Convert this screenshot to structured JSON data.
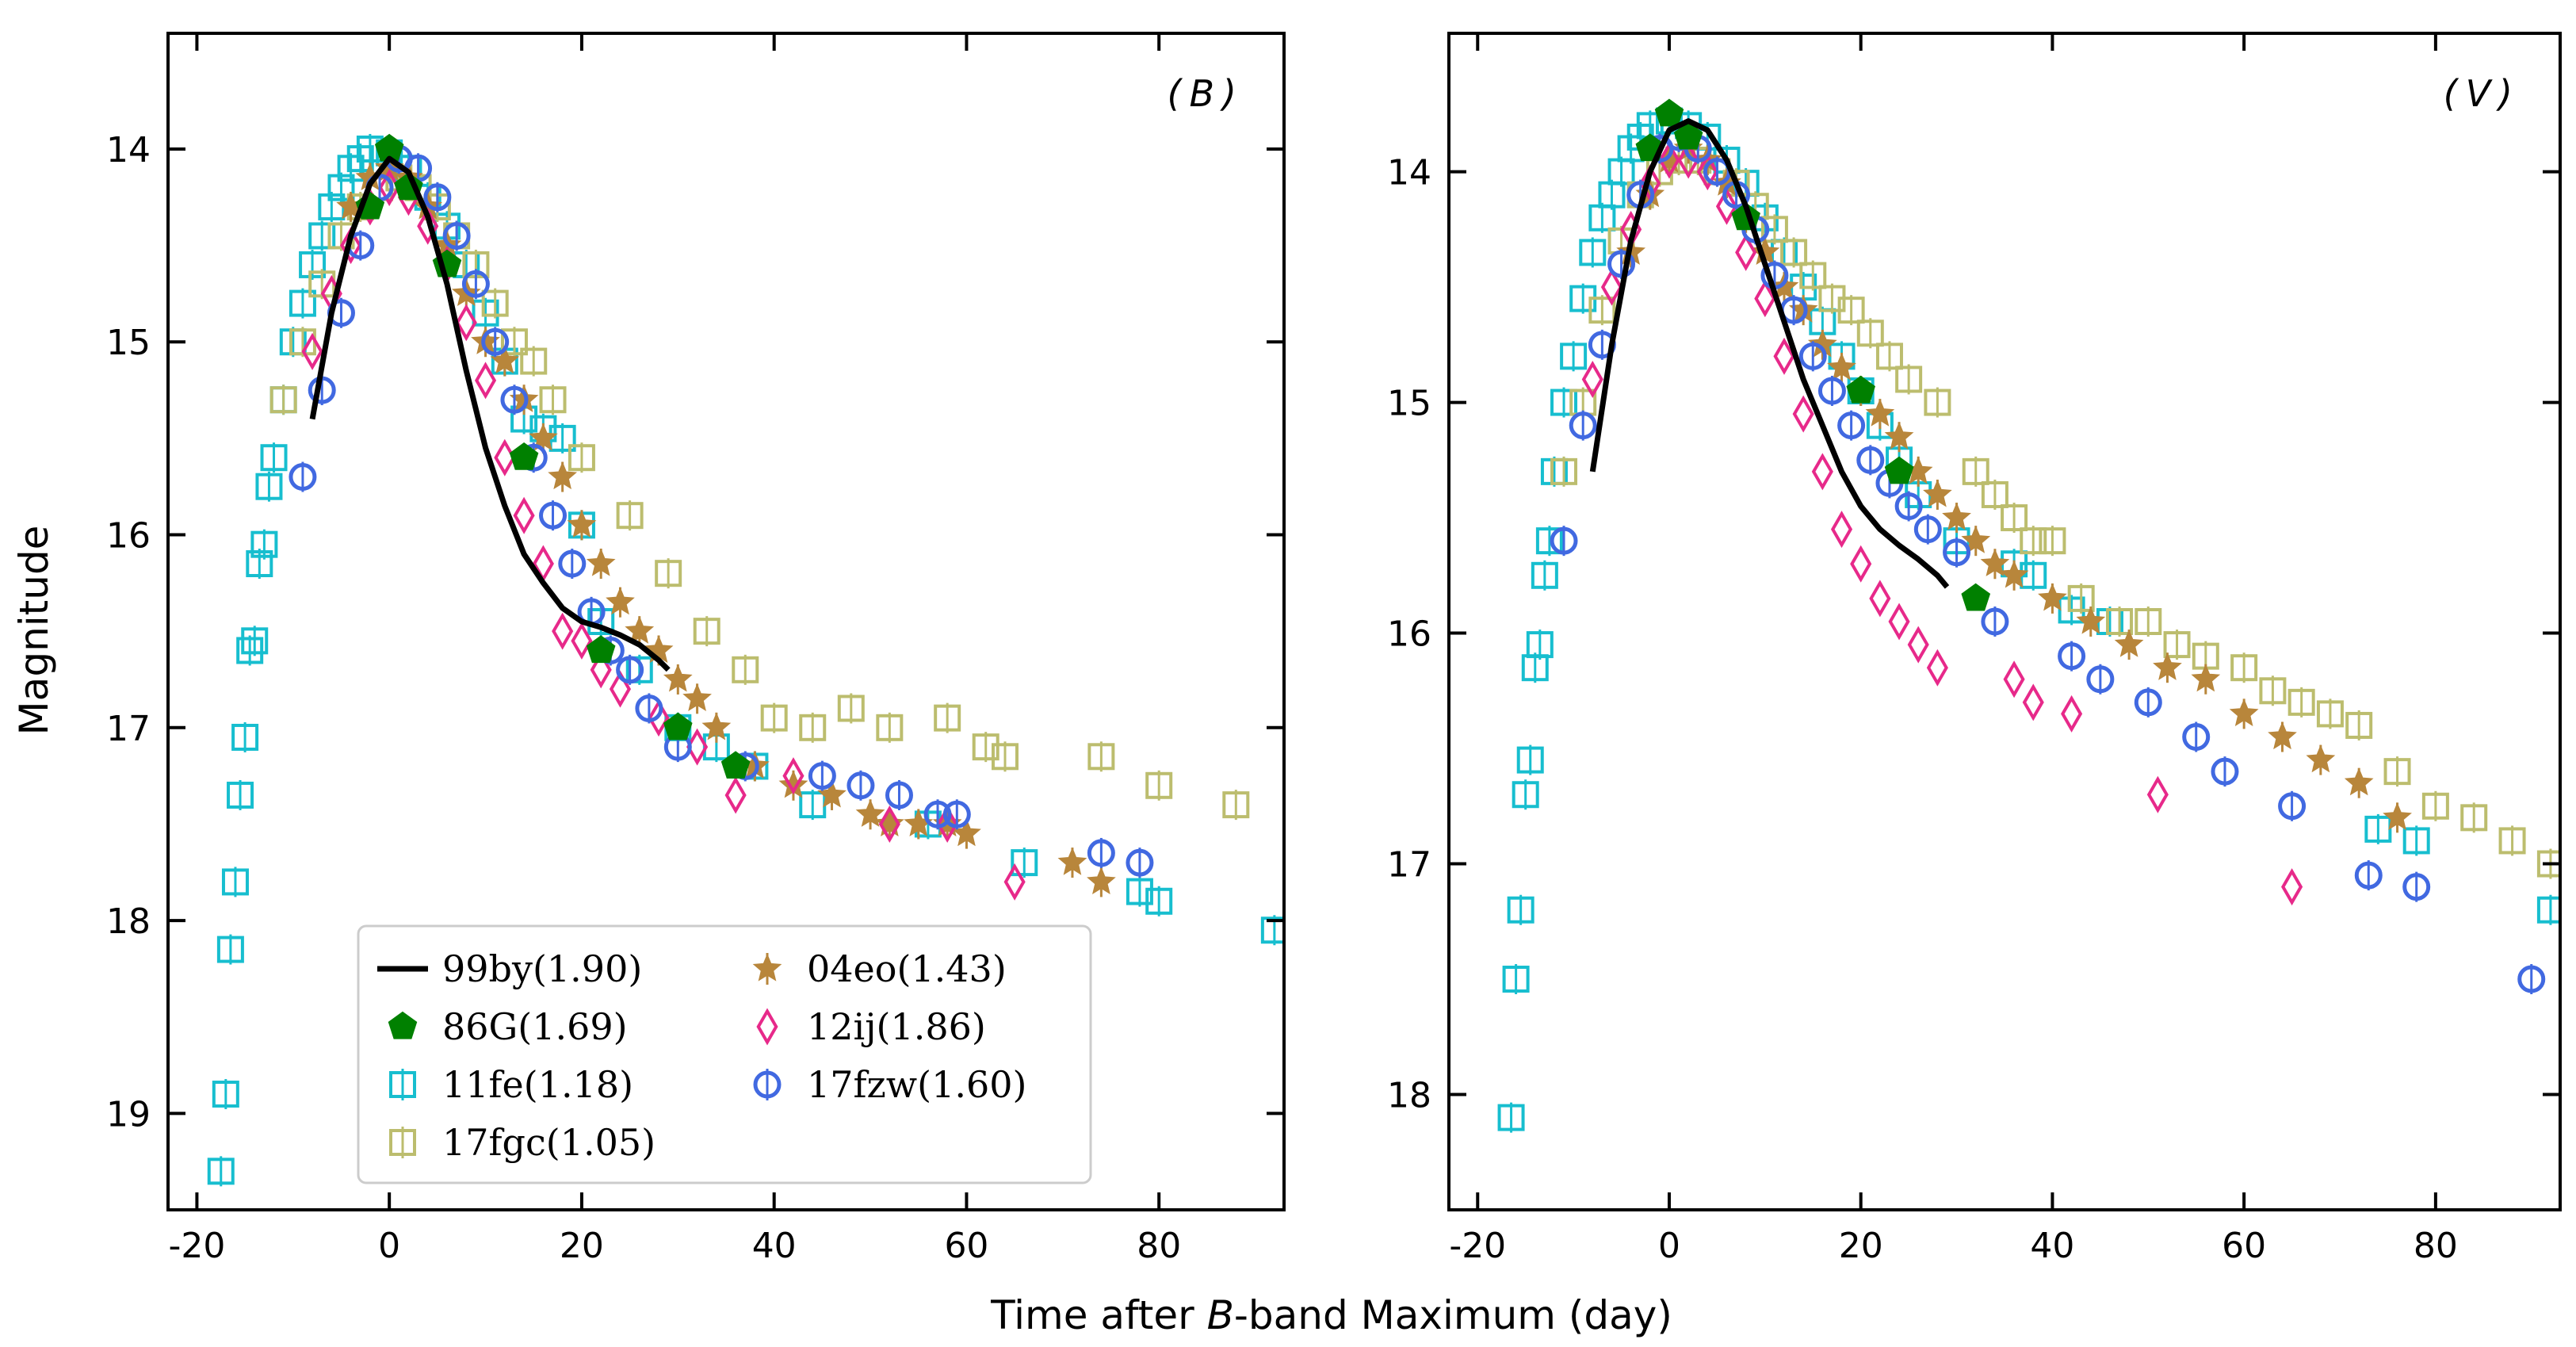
{
  "figure": {
    "xlabel_prefix": "Time after ",
    "xlabel_italic": "B",
    "xlabel_suffix": "-band Maximum (day)",
    "ylabel": "Magnitude"
  },
  "legend": [
    {
      "key": "sn99by",
      "label": "99by(1.90)"
    },
    {
      "key": "sn86G",
      "label": "86G(1.69)"
    },
    {
      "key": "sn11fe",
      "label": "11fe(1.18)"
    },
    {
      "key": "sn17fgc",
      "label": "17fgc(1.05)"
    },
    {
      "key": "sn04eo",
      "label": "04eo(1.43)"
    },
    {
      "key": "sn12ij",
      "label": "12ij(1.86)"
    },
    {
      "key": "sn17fzw",
      "label": "17fzw(1.60)"
    }
  ],
  "styles": {
    "sn99by": {
      "color": "#000000",
      "marker": "line"
    },
    "sn86G": {
      "color": "#008000",
      "marker": "pentagon"
    },
    "sn11fe": {
      "color": "#17becf",
      "marker": "square"
    },
    "sn17fgc": {
      "color": "#bcbd6e",
      "marker": "square"
    },
    "sn04eo": {
      "color": "#b8863b",
      "marker": "star"
    },
    "sn12ij": {
      "color": "#e7298a",
      "marker": "diamond"
    },
    "sn17fzw": {
      "color": "#4169e1",
      "marker": "circle"
    }
  },
  "chart_data": [
    {
      "type": "scatter",
      "title": "(B)",
      "title_open": "(",
      "title_band": "B",
      "title_close": ")",
      "xlabel": "Time after B-band Maximum (day)",
      "ylabel": "Magnitude",
      "xlim": [
        -23,
        93
      ],
      "ylim": [
        19.5,
        13.4
      ],
      "xticks": [
        -20,
        0,
        20,
        40,
        60,
        80
      ],
      "xtick_labels": [
        "-20",
        "0",
        "20",
        "40",
        "60",
        "80"
      ],
      "yticks": [
        14,
        15,
        16,
        17,
        18,
        19
      ],
      "ytick_labels": [
        "14",
        "15",
        "16",
        "17",
        "18",
        "19"
      ],
      "legend_position": "lower-left",
      "series": {
        "sn99by": {
          "x": [
            -8,
            -6,
            -4,
            -2,
            0,
            2,
            4,
            6,
            8,
            10,
            12,
            14,
            16,
            18,
            20,
            22,
            24,
            26,
            28,
            29
          ],
          "y": [
            15.4,
            14.85,
            14.45,
            14.18,
            14.05,
            14.12,
            14.35,
            14.7,
            15.15,
            15.55,
            15.85,
            16.1,
            16.25,
            16.38,
            16.45,
            16.48,
            16.52,
            16.57,
            16.65,
            16.7
          ]
        },
        "sn86G": {
          "x": [
            -2,
            0,
            2,
            6,
            14,
            22,
            30,
            36
          ],
          "y": [
            14.3,
            14.0,
            14.2,
            14.6,
            15.6,
            16.6,
            17.0,
            17.2
          ]
        },
        "sn11fe": {
          "x": [
            -17.5,
            -17,
            -16.5,
            -16,
            -15.5,
            -15,
            -14.5,
            -14,
            -13.5,
            -13,
            -12.5,
            -12,
            -11,
            -10,
            -9,
            -8,
            -7,
            -6,
            -5,
            -4,
            -3,
            -2,
            0,
            2,
            4,
            6,
            8,
            10,
            12,
            14,
            16,
            18,
            20,
            22,
            26,
            30,
            34,
            38,
            44,
            56,
            66,
            78,
            80,
            92
          ],
          "y": [
            19.3,
            18.9,
            18.15,
            17.8,
            17.35,
            17.05,
            16.6,
            16.55,
            16.15,
            16.05,
            15.75,
            15.6,
            15.3,
            15.0,
            14.8,
            14.6,
            14.45,
            14.3,
            14.2,
            14.1,
            14.05,
            14.0,
            14.02,
            14.1,
            14.25,
            14.4,
            14.6,
            14.85,
            15.1,
            15.4,
            15.45,
            15.5,
            15.95,
            16.45,
            16.7,
            17.0,
            17.1,
            17.2,
            17.4,
            17.5,
            17.7,
            17.85,
            17.9,
            18.05
          ]
        },
        "sn17fgc": {
          "x": [
            -11,
            -9,
            -7,
            -5,
            -3,
            -1,
            1,
            3,
            5,
            7,
            9,
            11,
            13,
            15,
            17,
            20,
            25,
            29,
            33,
            37,
            40,
            44,
            48,
            52,
            58,
            62,
            64,
            74,
            80,
            88
          ],
          "y": [
            15.3,
            15.0,
            14.7,
            14.45,
            14.3,
            14.2,
            14.15,
            14.2,
            14.3,
            14.45,
            14.6,
            14.8,
            15.0,
            15.1,
            15.3,
            15.6,
            15.9,
            16.2,
            16.5,
            16.7,
            16.95,
            17.0,
            16.9,
            17.0,
            16.95,
            17.1,
            17.15,
            17.15,
            17.3,
            17.4
          ]
        },
        "sn04eo": {
          "x": [
            -4,
            -2,
            0,
            2,
            4,
            6,
            8,
            10,
            12,
            14,
            16,
            18,
            20,
            22,
            24,
            26,
            28,
            30,
            32,
            34,
            38,
            42,
            46,
            50,
            52,
            55,
            58,
            60,
            71,
            74
          ],
          "y": [
            14.3,
            14.15,
            14.1,
            14.15,
            14.3,
            14.5,
            14.75,
            15.0,
            15.1,
            15.3,
            15.5,
            15.7,
            15.95,
            16.15,
            16.35,
            16.5,
            16.6,
            16.75,
            16.85,
            17.0,
            17.2,
            17.3,
            17.35,
            17.45,
            17.5,
            17.5,
            17.5,
            17.55,
            17.7,
            17.8
          ]
        },
        "sn12ij": {
          "x": [
            -8,
            -6,
            -4,
            -2,
            0,
            2,
            4,
            6,
            8,
            10,
            12,
            14,
            16,
            18,
            20,
            22,
            24,
            28,
            32,
            36,
            42,
            52,
            58,
            65
          ],
          "y": [
            15.05,
            14.75,
            14.5,
            14.3,
            14.2,
            14.25,
            14.4,
            14.6,
            14.9,
            15.2,
            15.6,
            15.9,
            16.15,
            16.5,
            16.55,
            16.7,
            16.8,
            16.95,
            17.1,
            17.35,
            17.25,
            17.5,
            17.5,
            17.8
          ]
        },
        "sn17fzw": {
          "x": [
            -9,
            -7,
            -5,
            -3,
            -1,
            1,
            3,
            5,
            7,
            9,
            11,
            13,
            15,
            17,
            19,
            21,
            23,
            25,
            27,
            30,
            37,
            45,
            49,
            53,
            57,
            59,
            74,
            78
          ],
          "y": [
            15.7,
            15.25,
            14.85,
            14.5,
            14.2,
            14.05,
            14.1,
            14.25,
            14.45,
            14.7,
            15.0,
            15.3,
            15.6,
            15.9,
            16.15,
            16.4,
            16.6,
            16.7,
            16.9,
            17.1,
            17.2,
            17.25,
            17.3,
            17.35,
            17.45,
            17.45,
            17.65,
            17.7
          ]
        }
      }
    },
    {
      "type": "scatter",
      "title": "(V)",
      "title_open": "(",
      "title_band": "V",
      "title_close": ")",
      "xlabel": "Time after B-band Maximum (day)",
      "ylabel": "Magnitude",
      "xlim": [
        -23,
        93
      ],
      "ylim": [
        18.5,
        13.4
      ],
      "xticks": [
        -20,
        0,
        20,
        40,
        60,
        80
      ],
      "xtick_labels": [
        "-20",
        "0",
        "20",
        "40",
        "60",
        "80"
      ],
      "yticks": [
        14,
        15,
        16,
        17,
        18
      ],
      "ytick_labels": [
        "14",
        "15",
        "16",
        "17",
        "18"
      ],
      "legend_position": "none",
      "series": {
        "sn99by": {
          "x": [
            -8,
            -6,
            -4,
            -2,
            0,
            2,
            4,
            6,
            8,
            10,
            12,
            14,
            16,
            18,
            20,
            22,
            24,
            26,
            28,
            29
          ],
          "y": [
            15.3,
            14.75,
            14.3,
            14.0,
            13.82,
            13.78,
            13.82,
            13.95,
            14.15,
            14.4,
            14.65,
            14.9,
            15.1,
            15.3,
            15.45,
            15.55,
            15.62,
            15.68,
            15.75,
            15.8
          ]
        },
        "sn86G": {
          "x": [
            -2,
            0,
            2,
            8,
            20,
            24,
            32
          ],
          "y": [
            13.9,
            13.75,
            13.85,
            14.2,
            14.95,
            15.3,
            15.85
          ]
        },
        "sn11fe": {
          "x": [
            -16.5,
            -16,
            -15.5,
            -15,
            -14.5,
            -14,
            -13.5,
            -13,
            -12.5,
            -12,
            -11,
            -10,
            -9,
            -8,
            -7,
            -6,
            -5,
            -4,
            -3,
            -2,
            0,
            2,
            4,
            6,
            8,
            10,
            12,
            14,
            16,
            18,
            20,
            22,
            24,
            26,
            30,
            36,
            38,
            42,
            46,
            74,
            78,
            92
          ],
          "y": [
            18.1,
            17.5,
            17.2,
            16.7,
            16.55,
            16.15,
            16.05,
            15.75,
            15.6,
            15.3,
            15.0,
            14.8,
            14.55,
            14.35,
            14.2,
            14.1,
            14.0,
            13.9,
            13.85,
            13.8,
            13.78,
            13.8,
            13.85,
            13.95,
            14.05,
            14.2,
            14.35,
            14.5,
            14.65,
            14.8,
            14.95,
            15.1,
            15.25,
            15.4,
            15.6,
            15.7,
            15.75,
            15.9,
            15.95,
            16.85,
            16.9,
            17.2
          ]
        },
        "sn17fgc": {
          "x": [
            -11,
            -9,
            -7,
            -5,
            -3,
            -1,
            1,
            3,
            5,
            7,
            9,
            11,
            13,
            15,
            17,
            19,
            21,
            23,
            25,
            28,
            32,
            34,
            36,
            38,
            40,
            43,
            47,
            50,
            53,
            56,
            60,
            63,
            66,
            69,
            72,
            76,
            80,
            84,
            88,
            92
          ],
          "y": [
            15.3,
            15.0,
            14.6,
            14.3,
            14.1,
            14.0,
            13.95,
            13.95,
            14.0,
            14.05,
            14.15,
            14.25,
            14.35,
            14.45,
            14.55,
            14.6,
            14.7,
            14.8,
            14.9,
            15.0,
            15.3,
            15.4,
            15.5,
            15.6,
            15.6,
            15.85,
            15.95,
            15.95,
            16.05,
            16.1,
            16.15,
            16.25,
            16.3,
            16.35,
            16.4,
            16.6,
            16.75,
            16.8,
            16.9,
            17.0
          ]
        },
        "sn04eo": {
          "x": [
            -4,
            -2,
            0,
            2,
            4,
            6,
            8,
            10,
            12,
            14,
            16,
            18,
            20,
            22,
            24,
            26,
            28,
            30,
            32,
            34,
            36,
            40,
            44,
            48,
            52,
            56,
            60,
            64,
            68,
            72,
            76
          ],
          "y": [
            14.35,
            14.1,
            13.95,
            13.9,
            13.95,
            14.05,
            14.2,
            14.35,
            14.5,
            14.6,
            14.75,
            14.85,
            14.95,
            15.05,
            15.15,
            15.3,
            15.4,
            15.5,
            15.6,
            15.7,
            15.75,
            15.85,
            15.95,
            16.05,
            16.15,
            16.2,
            16.35,
            16.45,
            16.55,
            16.65,
            16.8
          ]
        },
        "sn12ij": {
          "x": [
            -8,
            -6,
            -4,
            -2,
            0,
            2,
            4,
            6,
            8,
            10,
            12,
            14,
            16,
            18,
            20,
            22,
            24,
            26,
            28,
            36,
            38,
            42,
            51,
            65
          ],
          "y": [
            14.9,
            14.5,
            14.25,
            14.05,
            13.95,
            13.95,
            14.0,
            14.15,
            14.35,
            14.55,
            14.8,
            15.05,
            15.3,
            15.55,
            15.7,
            15.85,
            15.95,
            16.05,
            16.15,
            16.2,
            16.3,
            16.35,
            16.7,
            17.1
          ]
        },
        "sn17fzw": {
          "x": [
            -11,
            -9,
            -7,
            -5,
            -3,
            -1,
            1,
            3,
            5,
            7,
            9,
            11,
            13,
            15,
            17,
            19,
            21,
            23,
            25,
            27,
            30,
            34,
            42,
            45,
            50,
            55,
            58,
            65,
            73,
            78,
            90
          ],
          "y": [
            15.6,
            15.1,
            14.75,
            14.4,
            14.1,
            13.9,
            13.85,
            13.9,
            14.0,
            14.1,
            14.25,
            14.45,
            14.6,
            14.8,
            14.95,
            15.1,
            15.25,
            15.35,
            15.45,
            15.55,
            15.65,
            15.95,
            16.1,
            16.2,
            16.3,
            16.45,
            16.6,
            16.75,
            17.05,
            17.1,
            17.5
          ]
        }
      }
    }
  ]
}
